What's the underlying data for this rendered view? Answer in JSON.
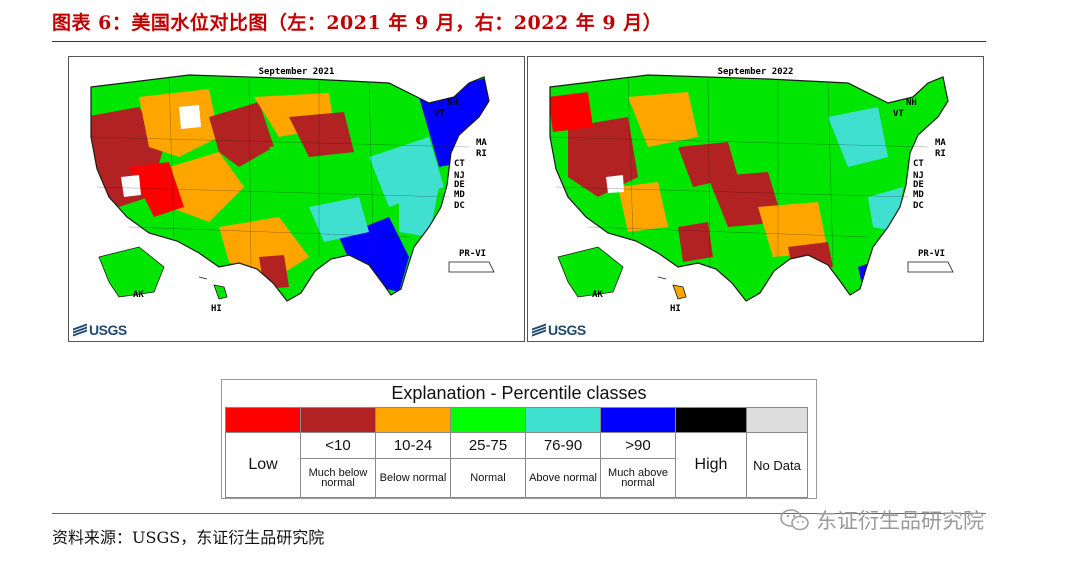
{
  "figure": {
    "title": "图表 6：美国水位对比图（左：2021 年 9 月，右：2022 年 9 月）",
    "source": "资料来源：USGS，东证衍生品研究院",
    "watermark": "东证衍生品研究院"
  },
  "maps": [
    {
      "caption": "September 2021",
      "logo": "USGS",
      "labels": {
        "nh": "NH",
        "vt": "VT",
        "ma": "MA",
        "ri": "RI",
        "ct": "CT",
        "nj": "NJ",
        "de": "DE",
        "md": "MD",
        "dc": "DC",
        "prvi": "PR-VI",
        "ak": "AK",
        "hi": "HI"
      }
    },
    {
      "caption": "September 2022",
      "logo": "USGS",
      "labels": {
        "nh": "NH",
        "vt": "VT",
        "ma": "MA",
        "ri": "RI",
        "ct": "CT",
        "nj": "NJ",
        "de": "DE",
        "md": "MD",
        "dc": "DC",
        "prvi": "PR-VI",
        "ak": "AK",
        "hi": "HI"
      }
    }
  ],
  "legend": {
    "title": "Explanation - Percentile classes",
    "classes": [
      {
        "color": "#ff0000",
        "label": "Low",
        "desc": ""
      },
      {
        "color": "#b22222",
        "label": "<10",
        "desc": "Much below normal"
      },
      {
        "color": "#ffa500",
        "label": "10-24",
        "desc": "Below normal"
      },
      {
        "color": "#00ff00",
        "label": "25-75",
        "desc": "Normal"
      },
      {
        "color": "#40e0d0",
        "label": "76-90",
        "desc": "Above normal"
      },
      {
        "color": "#0000ff",
        "label": ">90",
        "desc": "Much above normal"
      },
      {
        "color": "#000000",
        "label": "High",
        "desc": ""
      },
      {
        "color": "#dddddd",
        "label": "No Data",
        "desc": ""
      }
    ]
  }
}
